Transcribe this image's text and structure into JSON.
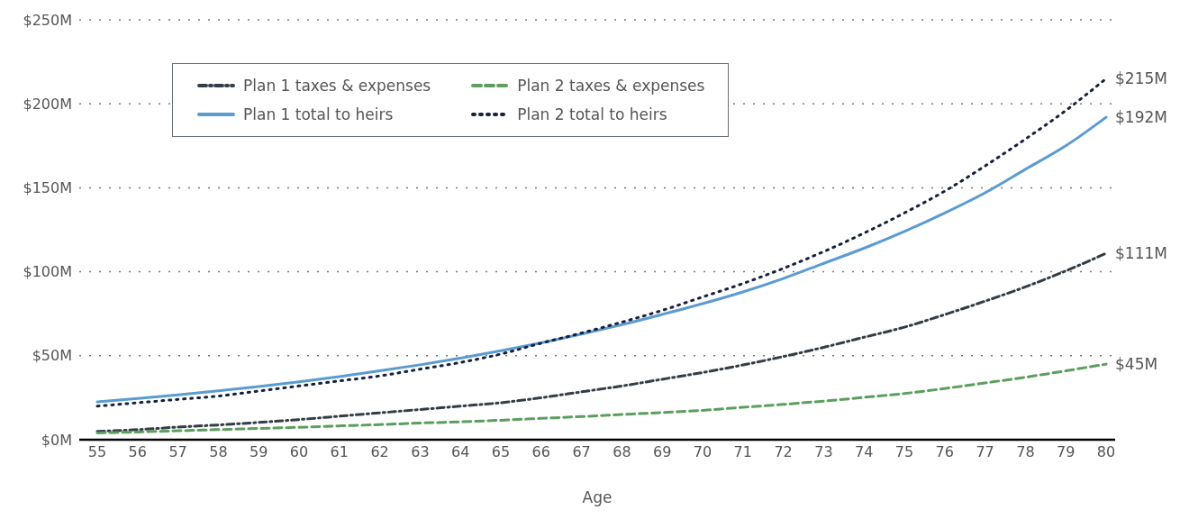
{
  "chart_data": {
    "type": "line",
    "xlabel": "Age",
    "categories": [
      "55",
      "56",
      "57",
      "58",
      "59",
      "60",
      "61",
      "62",
      "63",
      "64",
      "65",
      "66",
      "67",
      "68",
      "69",
      "70",
      "71",
      "72",
      "73",
      "74",
      "75",
      "76",
      "77",
      "78",
      "79",
      "80"
    ],
    "series": [
      {
        "name": "Plan 1 taxes & expenses",
        "color": "#343d47",
        "line_style": "dashdot",
        "values": [
          5,
          6,
          7.5,
          8.8,
          10.3,
          12,
          14,
          16,
          18,
          20,
          22,
          25,
          28.5,
          32,
          36,
          40,
          44.5,
          49.5,
          55,
          61,
          67,
          74.5,
          82.5,
          91,
          100.5,
          111
        ]
      },
      {
        "name": "Plan 2 taxes & expenses",
        "color": "#5c9e5e",
        "line_style": "dashed",
        "values": [
          4,
          4.6,
          5.3,
          6,
          6.7,
          7.4,
          8.2,
          9,
          9.9,
          10.7,
          11.6,
          12.7,
          13.8,
          15,
          16.2,
          17.5,
          19.3,
          21,
          23,
          25.2,
          27.5,
          30.5,
          33.8,
          37.2,
          41,
          45
        ]
      },
      {
        "name": "Plan 1 total to heirs",
        "color": "#5b9bd0",
        "line_style": "solid",
        "values": [
          22.5,
          24.5,
          26.7,
          29.1,
          31.7,
          34.5,
          37.6,
          41,
          44.6,
          48.6,
          53,
          57.7,
          62.9,
          68.5,
          74.6,
          81,
          88,
          96,
          105,
          114,
          124,
          135,
          147,
          161,
          175,
          192
        ]
      },
      {
        "name": "Plan 2 total to heirs",
        "color": "#16213d",
        "line_style": "dotted",
        "values": [
          20,
          22,
          24,
          26,
          29,
          32,
          35,
          38,
          42,
          46,
          51,
          57.5,
          63.5,
          70,
          77,
          85,
          93,
          102,
          112,
          123,
          135,
          148,
          163,
          179,
          196,
          215
        ]
      }
    ],
    "ylim": [
      0,
      250
    ],
    "yticks": [
      {
        "value": 0,
        "label": "$0M"
      },
      {
        "value": 50,
        "label": "$50M"
      },
      {
        "value": 100,
        "label": "$100M"
      },
      {
        "value": 150,
        "label": "$150M"
      },
      {
        "value": 200,
        "label": "$200M"
      },
      {
        "value": 250,
        "label": "$250M"
      }
    ],
    "grid": "y",
    "legend": "top left",
    "marker": "none",
    "annotations": [
      {
        "text": "$215M",
        "x": "80",
        "y": 215
      },
      {
        "text": "$192M",
        "x": "80",
        "y": 192
      },
      {
        "text": "$111M",
        "x": "80",
        "y": 111
      },
      {
        "text": "$45M",
        "x": "80",
        "y": 45
      }
    ]
  }
}
